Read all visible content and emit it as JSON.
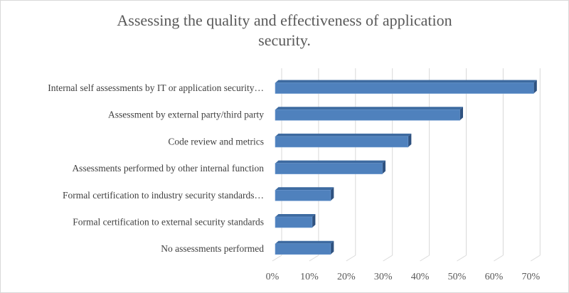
{
  "chart_data": {
    "type": "bar",
    "orientation": "horizontal",
    "style": "3d",
    "title": "Assessing the quality and effectiveness of application security.",
    "title_lines": [
      "Assessing  the quality and effectiveness of application",
      "security."
    ],
    "categories": [
      "Internal self assessments by IT or application security…",
      "Assessment by external party/third party",
      "Code review and metrics",
      "Assessments performed by other internal function",
      "Formal certification to industry security standards…",
      "Formal certification to external security standards",
      "No assessments performed"
    ],
    "values": [
      70,
      50,
      36,
      29,
      15,
      10,
      15
    ],
    "xlim": [
      0,
      70
    ],
    "xticks": [
      "0%",
      "10%",
      "20%",
      "30%",
      "40%",
      "50%",
      "60%",
      "70%"
    ],
    "xlabel": "",
    "ylabel": "",
    "grid": "vertical",
    "legend": "none",
    "colors": {
      "bar_front": "#4f81bd",
      "bar_top": "#3d6aa0",
      "bar_side": "#2f5280",
      "grid": "#d9d9d9",
      "text": "#595959"
    }
  }
}
